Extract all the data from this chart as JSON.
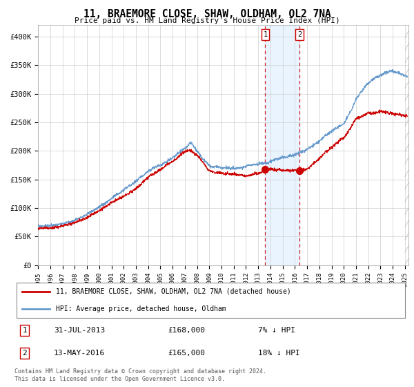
{
  "title": "11, BRAEMORE CLOSE, SHAW, OLDHAM, OL2 7NA",
  "subtitle": "Price paid vs. HM Land Registry's House Price Index (HPI)",
  "hpi_color": "#6699cc",
  "price_color": "#cc0000",
  "sale1_date": "31-JUL-2013",
  "sale1_price": 168000,
  "sale1_label": "7% ↓ HPI",
  "sale2_date": "13-MAY-2016",
  "sale2_price": 165000,
  "sale2_label": "18% ↓ HPI",
  "legend_line1": "11, BRAEMORE CLOSE, SHAW, OLDHAM, OL2 7NA (detached house)",
  "legend_line2": "HPI: Average price, detached house, Oldham",
  "footer": "Contains HM Land Registry data © Crown copyright and database right 2024.\nThis data is licensed under the Open Government Licence v3.0.",
  "shaded_start_year": 2013.58,
  "shaded_end_year": 2016.37,
  "background_color": "#ffffff",
  "grid_color": "#cccccc",
  "shade_color": "#ddeeff",
  "ytick_vals": [
    0,
    50000,
    100000,
    150000,
    200000,
    250000,
    300000,
    350000,
    400000
  ],
  "ytick_labels": [
    "£0",
    "£50K",
    "£100K",
    "£150K",
    "£200K",
    "£250K",
    "£300K",
    "£350K",
    "£400K"
  ],
  "xlim_start": 1995,
  "xlim_end": 2025.3,
  "ylim_top": 420000,
  "hpi_keypoints_x": [
    1995,
    1996,
    1997,
    1998,
    1999,
    2000,
    2001,
    2002,
    2003,
    2004,
    2005,
    2006,
    2007,
    2007.5,
    2008,
    2008.5,
    2009,
    2010,
    2011,
    2012,
    2013,
    2013.58,
    2014,
    2015,
    2016,
    2016.37,
    2017,
    2018,
    2019,
    2020,
    2020.5,
    2021,
    2022,
    2023,
    2024,
    2025
  ],
  "hpi_keypoints_y": [
    68000,
    70000,
    73000,
    80000,
    90000,
    103000,
    118000,
    133000,
    148000,
    167000,
    180000,
    195000,
    210000,
    222000,
    208000,
    193000,
    182000,
    178000,
    176000,
    177000,
    180000,
    181000,
    185000,
    190000,
    195000,
    196000,
    202000,
    218000,
    235000,
    248000,
    268000,
    295000,
    320000,
    330000,
    335000,
    330000
  ],
  "prop_keypoints_x": [
    1995,
    1996,
    1997,
    1998,
    1999,
    2000,
    2001,
    2002,
    2003,
    2004,
    2005,
    2006,
    2007,
    2007.5,
    2008,
    2008.5,
    2009,
    2010,
    2011,
    2012,
    2013,
    2013.58,
    2014,
    2015,
    2016,
    2016.37,
    2017,
    2018,
    2019,
    2020,
    2021,
    2022,
    2023,
    2024,
    2025
  ],
  "prop_keypoints_y": [
    64000,
    65000,
    68000,
    74000,
    83000,
    95000,
    110000,
    122000,
    135000,
    155000,
    168000,
    182000,
    198000,
    200000,
    192000,
    178000,
    165000,
    162000,
    160000,
    158000,
    162000,
    168000,
    170000,
    168000,
    168000,
    165000,
    172000,
    190000,
    210000,
    225000,
    258000,
    270000,
    270000,
    265000,
    260000
  ]
}
